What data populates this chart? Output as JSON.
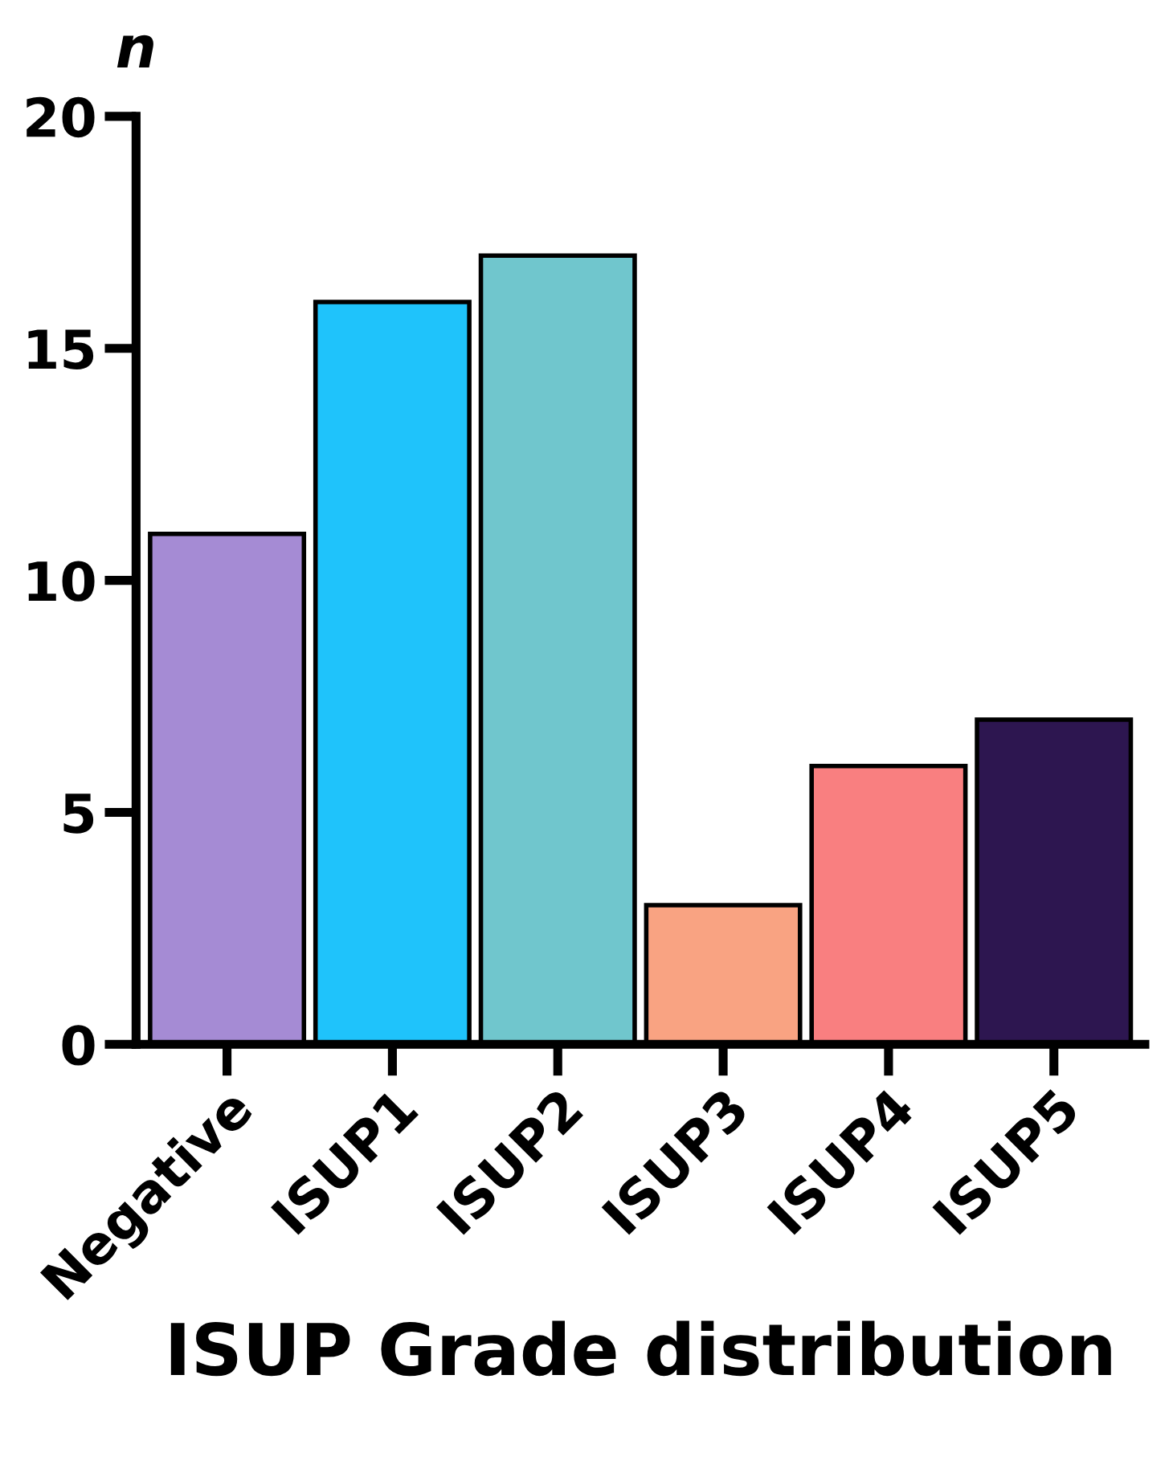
{
  "chart_data": {
    "type": "bar",
    "xlabel": "ISUP Grade distribution",
    "ylabel": "n",
    "categories": [
      "Negative",
      "ISUP1",
      "ISUP2",
      "ISUP3",
      "ISUP4",
      "ISUP5"
    ],
    "values": [
      11,
      16,
      17,
      3,
      6,
      7
    ],
    "colors": [
      "#a58bd4",
      "#1fc3fb",
      "#70c6cd",
      "#f9a382",
      "#f97f80",
      "#2d1650"
    ],
    "ylim": [
      0,
      20
    ],
    "yticks": [
      0,
      5,
      10,
      15,
      20
    ],
    "grid": false,
    "legend": false
  }
}
